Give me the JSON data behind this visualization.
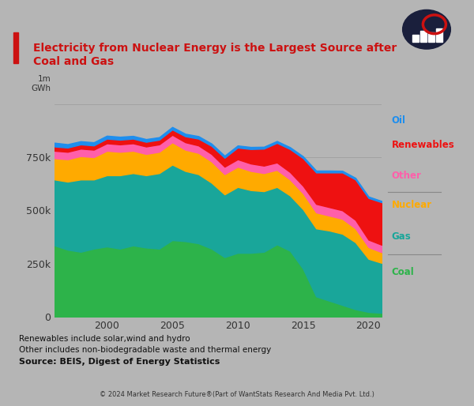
{
  "title_line1": "Electricity from Nuclear Energy is the Largest Source after",
  "title_line2": "Coal and Gas",
  "ylabel_top": "1m",
  "ylabel_unit": "GWh",
  "footnote1": "Renewables include solar,wind and hydro",
  "footnote2": "Other includes non-biodegradable waste and thermal energy",
  "source": "Source: BEIS, Digest of Energy Statistics",
  "copyright": "© 2024 Market Research Future®(Part of WantStats Research And Media Pvt. Ltd.)",
  "years": [
    1996,
    1997,
    1998,
    1999,
    2000,
    2001,
    2002,
    2003,
    2004,
    2005,
    2006,
    2007,
    2008,
    2009,
    2010,
    2011,
    2012,
    2013,
    2014,
    2015,
    2016,
    2017,
    2018,
    2019,
    2020,
    2021
  ],
  "coal": [
    335000,
    315000,
    305000,
    320000,
    330000,
    320000,
    335000,
    325000,
    320000,
    360000,
    355000,
    345000,
    320000,
    280000,
    300000,
    300000,
    305000,
    340000,
    310000,
    225000,
    95000,
    75000,
    55000,
    35000,
    22000,
    18000
  ],
  "gas": [
    310000,
    320000,
    340000,
    325000,
    335000,
    345000,
    340000,
    340000,
    355000,
    355000,
    330000,
    325000,
    310000,
    295000,
    310000,
    295000,
    285000,
    270000,
    260000,
    280000,
    320000,
    330000,
    335000,
    315000,
    250000,
    235000
  ],
  "nuclear": [
    100000,
    105000,
    110000,
    105000,
    115000,
    110000,
    105000,
    100000,
    100000,
    105000,
    100000,
    100000,
    100000,
    95000,
    95000,
    90000,
    85000,
    80000,
    75000,
    75000,
    75000,
    70000,
    70000,
    65000,
    55000,
    50000
  ],
  "other": [
    35000,
    35000,
    35000,
    35000,
    35000,
    35000,
    35000,
    35000,
    35000,
    35000,
    35000,
    35000,
    35000,
    35000,
    35000,
    35000,
    35000,
    35000,
    35000,
    35000,
    40000,
    40000,
    40000,
    40000,
    35000,
    35000
  ],
  "renewables": [
    20000,
    20000,
    20000,
    20000,
    22000,
    22000,
    22000,
    22000,
    22000,
    25000,
    28000,
    32000,
    38000,
    42000,
    55000,
    68000,
    80000,
    92000,
    108000,
    130000,
    148000,
    163000,
    178000,
    190000,
    196000,
    200000
  ],
  "oil": [
    18000,
    16000,
    15000,
    15000,
    14000,
    14000,
    13000,
    13000,
    12000,
    12000,
    12000,
    12000,
    11000,
    10000,
    10000,
    10000,
    9000,
    9000,
    9000,
    9000,
    9000,
    9000,
    8000,
    8000,
    7000,
    6000
  ],
  "colors": {
    "coal": "#2db34a",
    "gas": "#19a69a",
    "nuclear": "#ffaa00",
    "other": "#ff5faa",
    "renewables": "#ee1111",
    "oil": "#1e8eee"
  },
  "legend_colors": {
    "Oil": "#1e8eee",
    "Renewables": "#ee1111",
    "Other": "#ff5faa",
    "Nuclear": "#ffaa00",
    "Gas": "#19a69a",
    "Coal": "#2db34a"
  },
  "ylim": [
    0,
    1050000
  ],
  "yticks": [
    0,
    250000,
    500000,
    750000,
    1000000
  ],
  "ytick_labels": [
    "0",
    "250k",
    "500k",
    "750k",
    ""
  ],
  "title_color": "#cc1111",
  "grid_color": "#999999",
  "tick_color": "#333333",
  "bg_color": "#b5b5b5"
}
